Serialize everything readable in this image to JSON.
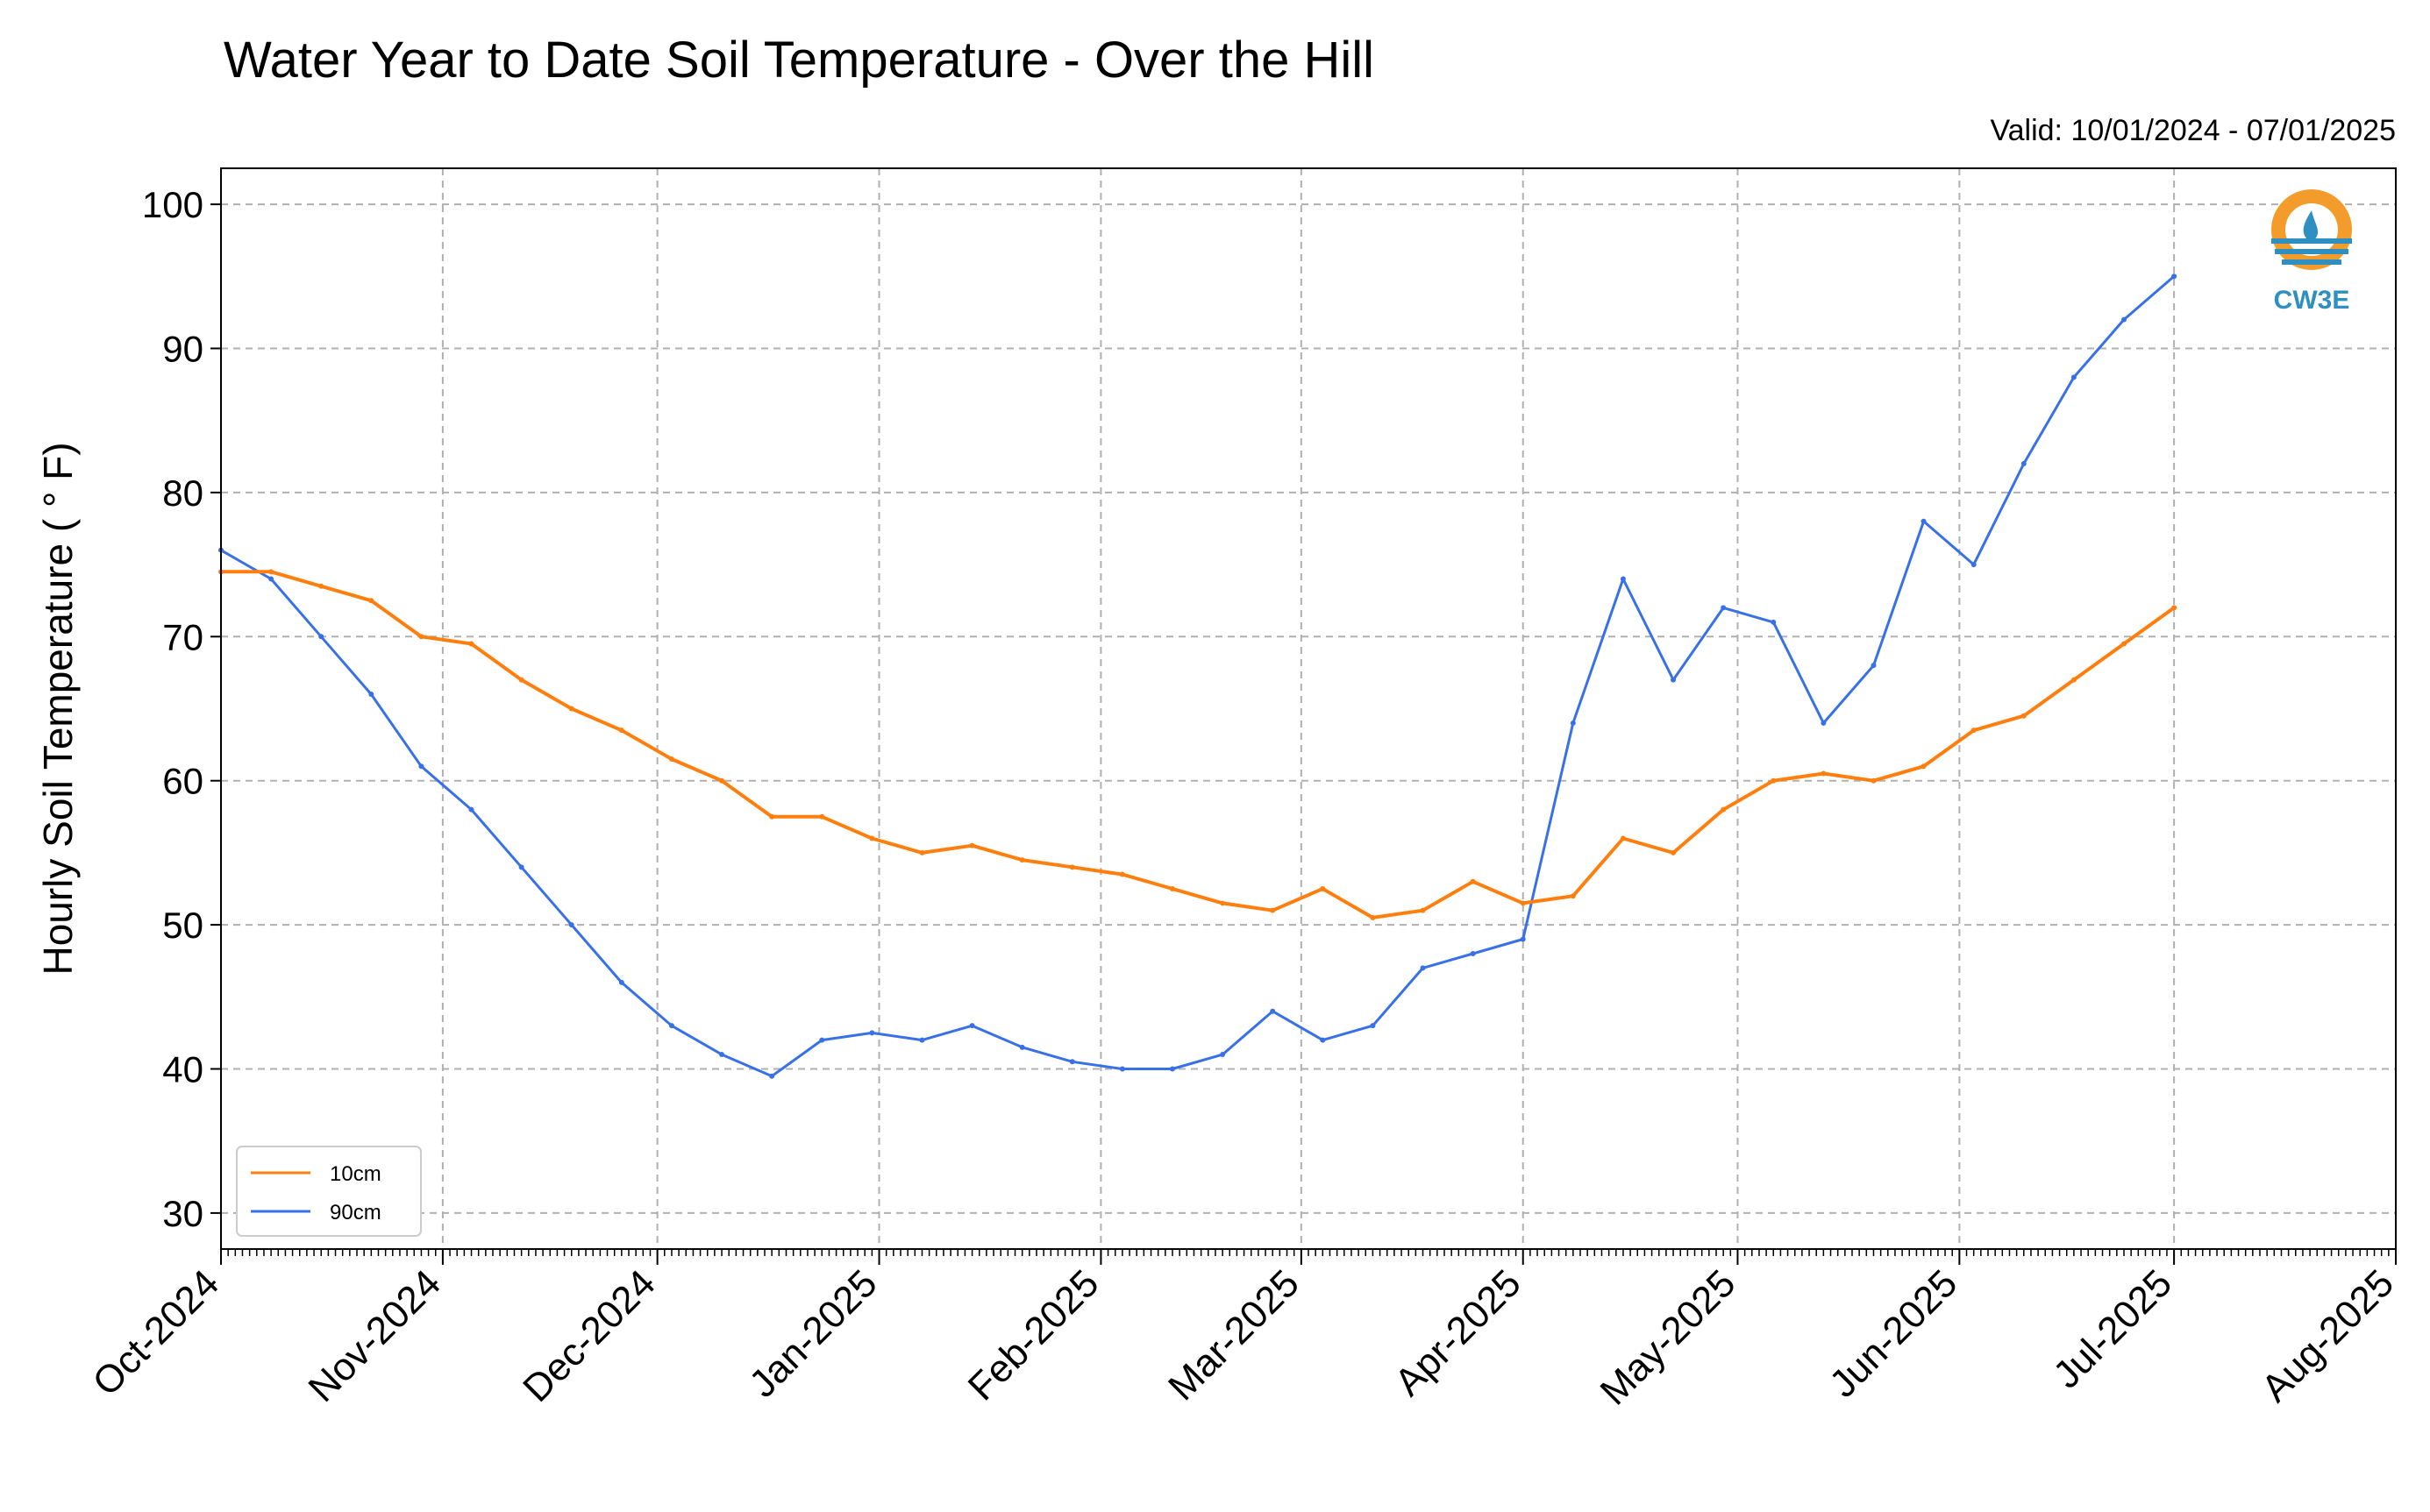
{
  "chart_data": {
    "type": "line",
    "title": "Water Year to Date Soil Temperature - Over the Hill",
    "subtitle": "Valid: 10/01/2024 - 07/01/2025",
    "ylabel": "Hourly Soil Temperature ( ° F)",
    "xlabel": "",
    "ylim": [
      27.5,
      102.5
    ],
    "xlim": [
      "2024-10-01",
      "2025-08-01"
    ],
    "yticks": [
      30,
      40,
      50,
      60,
      70,
      80,
      90,
      100
    ],
    "xticks": [
      "Oct-2024",
      "Nov-2024",
      "Dec-2024",
      "Jan-2025",
      "Feb-2025",
      "Mar-2025",
      "Apr-2025",
      "May-2025",
      "Jun-2025",
      "Jul-2025",
      "Aug-2025"
    ],
    "grid": true,
    "legend_position": "lower-left",
    "logo_text": "CW3E",
    "series": [
      {
        "name": "10cm",
        "color": "#ff7f0e",
        "x": [
          "2024-10-01",
          "2024-10-08",
          "2024-10-15",
          "2024-10-22",
          "2024-10-29",
          "2024-11-05",
          "2024-11-12",
          "2024-11-19",
          "2024-11-26",
          "2024-12-03",
          "2024-12-10",
          "2024-12-17",
          "2024-12-24",
          "2024-12-31",
          "2025-01-07",
          "2025-01-14",
          "2025-01-21",
          "2025-01-28",
          "2025-02-04",
          "2025-02-11",
          "2025-02-18",
          "2025-02-25",
          "2025-03-04",
          "2025-03-11",
          "2025-03-18",
          "2025-03-25",
          "2025-04-01",
          "2025-04-08",
          "2025-04-15",
          "2025-04-22",
          "2025-04-29",
          "2025-05-06",
          "2025-05-13",
          "2025-05-20",
          "2025-05-27",
          "2025-06-03",
          "2025-06-10",
          "2025-06-17",
          "2025-06-24",
          "2025-07-01"
        ],
        "y": [
          74.5,
          74.5,
          73.5,
          72.5,
          70.0,
          69.5,
          67.0,
          65.0,
          63.5,
          61.5,
          60.0,
          57.5,
          57.5,
          56.0,
          55.0,
          55.5,
          54.5,
          54.0,
          53.5,
          52.5,
          51.5,
          51.0,
          52.5,
          50.5,
          51.0,
          53.0,
          51.5,
          52.0,
          56.0,
          55.0,
          58.0,
          60.0,
          60.5,
          60.0,
          61.0,
          63.5,
          64.5,
          67.0,
          69.5,
          72.0
        ]
      },
      {
        "name": "90cm",
        "color": "#3870e8",
        "x": [
          "2024-10-01",
          "2024-10-08",
          "2024-10-15",
          "2024-10-22",
          "2024-10-29",
          "2024-11-05",
          "2024-11-12",
          "2024-11-19",
          "2024-11-26",
          "2024-12-03",
          "2024-12-10",
          "2024-12-17",
          "2024-12-24",
          "2024-12-31",
          "2025-01-07",
          "2025-01-14",
          "2025-01-21",
          "2025-01-28",
          "2025-02-04",
          "2025-02-11",
          "2025-02-18",
          "2025-02-25",
          "2025-03-04",
          "2025-03-11",
          "2025-03-18",
          "2025-03-25",
          "2025-04-01",
          "2025-04-08",
          "2025-04-15",
          "2025-04-22",
          "2025-04-29",
          "2025-05-06",
          "2025-05-13",
          "2025-05-20",
          "2025-05-27",
          "2025-06-03",
          "2025-06-10",
          "2025-06-17",
          "2025-06-24",
          "2025-07-01"
        ],
        "y": [
          76.0,
          74.0,
          70.0,
          66.0,
          61.0,
          58.0,
          54.0,
          50.0,
          46.0,
          43.0,
          41.0,
          39.5,
          42.0,
          42.5,
          42.0,
          43.0,
          41.5,
          40.5,
          40.0,
          40.0,
          41.0,
          44.0,
          42.0,
          43.0,
          47.0,
          48.0,
          49.0,
          64.0,
          74.0,
          67.0,
          72.0,
          71.0,
          64.0,
          68.0,
          78.0,
          75.0,
          82.0,
          88.0,
          92.0,
          95.0
        ]
      }
    ]
  }
}
